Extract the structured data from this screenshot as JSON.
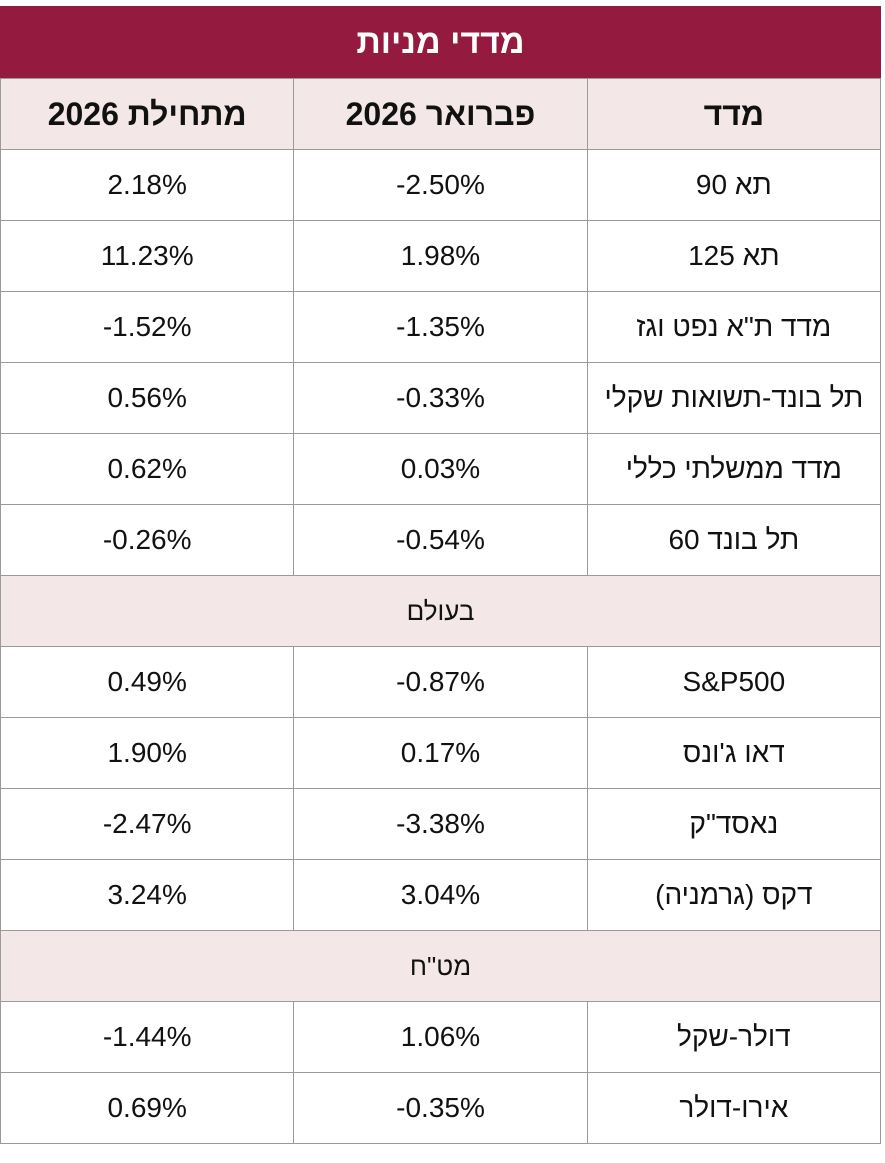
{
  "header": {
    "title": "מדדי מניות"
  },
  "table": {
    "columns": [
      "מדד",
      "פברואר 2026",
      "מתחילת 2026"
    ],
    "rows": [
      [
        "תא 90",
        "-2.50%",
        "2.18%"
      ],
      [
        "תא 125",
        "1.98%",
        "11.23%"
      ],
      [
        "מדד ת\"א נפט וגז",
        "-1.35%",
        "-1.52%"
      ],
      [
        "תל בונד-תשואות שקלי",
        "-0.33%",
        "0.56%"
      ],
      [
        "מדד ממשלתי כללי",
        "0.03%",
        "0.62%"
      ],
      [
        "תל בונד 60",
        "-0.54%",
        "-0.26%"
      ],
      [
        "בעולם"
      ],
      [
        "S&P500",
        "-0.87%",
        "0.49%"
      ],
      [
        "דאו ג'ונס",
        "0.17%",
        "1.90%"
      ],
      [
        "נאסד\"ק",
        "-3.38%",
        "-2.47%"
      ],
      [
        "דקס (גרמניה)",
        "3.04%",
        "3.24%"
      ],
      [
        "מט\"ח"
      ],
      [
        "דולר-שקל",
        "1.06%",
        "-1.44%"
      ],
      [
        "אירו-דולר",
        "-0.35%",
        "0.69%"
      ]
    ]
  }
}
